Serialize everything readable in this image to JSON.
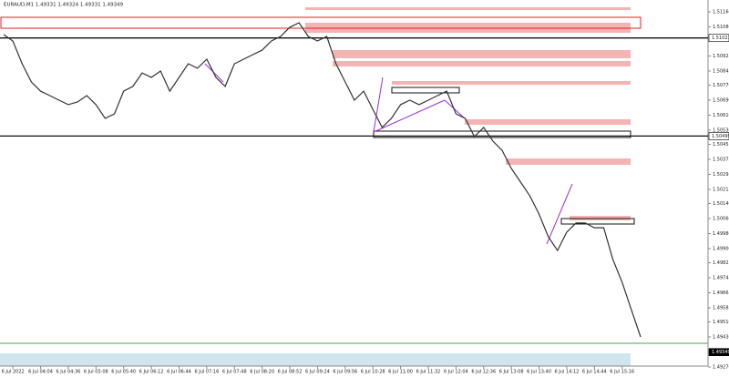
{
  "header": {
    "title": "EURAUD,M1  1.49331 1.49324 1.49331 1.49349"
  },
  "chart_data": {
    "type": "line",
    "color": "#333333",
    "categories": [
      null,
      "6 Jul 2022",
      null,
      null,
      "6 Jul 04:04",
      null,
      null,
      "6 Jul 04:36",
      null,
      null,
      "6 Jul 05:08",
      null,
      null,
      "6 Jul 05:40",
      null,
      null,
      "6 Jul 06:12",
      null,
      null,
      "6 Jul 06:44",
      null,
      null,
      "6 Jul 07:16",
      null,
      null,
      "6 Jul 07:48",
      null,
      null,
      "6 Jul 08:20",
      null,
      null,
      "6 Jul 08:52",
      null,
      null,
      "6 Jul 09:24",
      null,
      null,
      "6 Jul 09:56",
      null,
      null,
      "6 Jul 10:28",
      null,
      null,
      "6 Jul 11:00",
      null,
      null,
      "6 Jul 11:32",
      null,
      null,
      "6 Jul 12:04",
      null,
      null,
      "6 Jul 12:36",
      null,
      null,
      "6 Jul 13:08",
      null,
      null,
      "6 Jul 13:40",
      null,
      null,
      "6 Jul 14:12",
      null,
      null,
      "6 Jul 14:44",
      null,
      null,
      "6 Jul 15:16",
      null,
      null
    ],
    "values": [
      1.51039,
      1.51005,
      1.50884,
      1.50787,
      1.50738,
      1.50714,
      1.5069,
      1.50666,
      1.5068,
      1.50714,
      1.50666,
      1.50593,
      1.50617,
      1.50738,
      1.50763,
      1.50835,
      1.50811,
      1.50845,
      1.50738,
      1.50811,
      1.50884,
      1.5086,
      1.50908,
      1.50811,
      1.50763,
      1.50884,
      1.50908,
      1.50932,
      1.50956,
      1.51005,
      1.51029,
      1.51078,
      1.51102,
      1.51029,
      1.51005,
      1.51029,
      1.50884,
      1.50787,
      1.5069,
      1.50738,
      1.50641,
      1.50545,
      1.50593,
      1.50666,
      1.5069,
      1.50666,
      1.5069,
      1.50714,
      1.50738,
      1.50617,
      1.50593,
      1.50496,
      1.50545,
      1.50472,
      1.50423,
      1.50326,
      1.50254,
      1.50181,
      1.50084,
      1.49963,
      1.4989,
      1.49987,
      1.50036,
      1.50036,
      1.50011,
      1.50011,
      1.49842,
      1.49721,
      1.49575,
      1.4943
    ],
    "ylim": [
      1.4927,
      1.51223
    ],
    "yticks": [
      {
        "value": 1.5116,
        "label": "1.51160"
      },
      {
        "value": 1.5108,
        "label": "1.51080"
      },
      1.50925,
      1.50845,
      {
        "value": 1.5077,
        "label": "1.50770"
      },
      {
        "value": 1.5069,
        "label": "1.50690"
      },
      {
        "value": 1.5061,
        "label": "1.50610"
      },
      {
        "value": 1.5053,
        "label": "1.50530"
      },
      1.50455,
      1.50375,
      1.50295,
      1.50215,
      {
        "value": 1.5014,
        "label": "1.50140"
      },
      {
        "value": 1.5006,
        "label": "1.50060"
      },
      {
        "value": 1.4998,
        "label": "1.49980"
      },
      {
        "value": 1.499,
        "label": "1.49900"
      },
      1.49825,
      1.49745,
      1.49665,
      1.49585,
      {
        "value": 1.4951,
        "label": "1.49510"
      },
      {
        "value": 1.4943,
        "label": "1.49430"
      },
      {
        "value": 1.4927,
        "label": "1.49270"
      }
    ],
    "price_tags": [
      1.51021,
      1.50499,
      1.49349
    ]
  }
}
